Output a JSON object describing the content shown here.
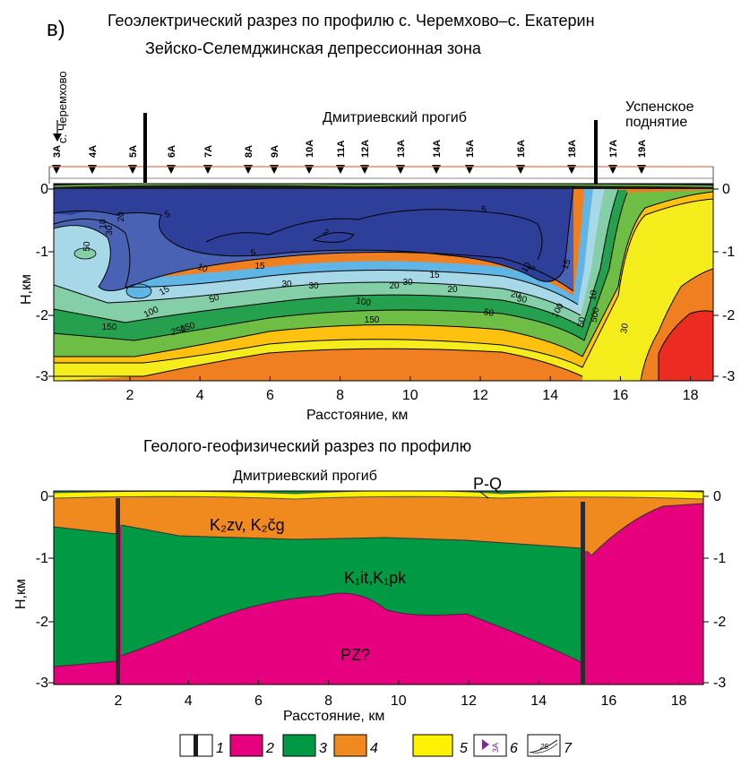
{
  "panel_letter": "в)",
  "title_line1": "Геоэлектрический разрез по профилю с. Черемхово–с. Екатерин",
  "title_line2": "Зейско-Селемджинская депрессионная зона",
  "village_label": "с. Черемхово",
  "trough_label": "Дмитриевский прогиб",
  "uplift_label_1": "Успенское",
  "uplift_label_2": "поднятие",
  "stations": [
    "3А",
    "4А",
    "5А",
    "6А",
    "7А",
    "8А",
    "9А",
    "10А",
    "11А",
    "12А",
    "13А",
    "14А",
    "15А",
    "16А",
    "18А",
    "17А",
    "19А"
  ],
  "top_panel": {
    "ylabel": "Н,км",
    "xlabel": "Расстояние, км",
    "x_ticks": [
      "2",
      "4",
      "6",
      "8",
      "10",
      "12",
      "14",
      "16",
      "18"
    ],
    "y_ticks": [
      "0",
      "-1",
      "-2",
      "-3"
    ],
    "contour_labels": [
      "5",
      "5",
      "5",
      "2",
      "5",
      "10",
      "10",
      "10",
      "15",
      "15",
      "15",
      "15",
      "20",
      "20",
      "20",
      "20",
      "30",
      "30",
      "30",
      "30",
      "30",
      "50",
      "50",
      "50",
      "100",
      "100",
      "100",
      "150",
      "150",
      "150",
      "250",
      "500",
      "30",
      "50",
      "10"
    ],
    "resistivity_colors": [
      "#2e3f9a",
      "#4a62b4",
      "#5fb6e6",
      "#a6d8e8",
      "#84cfa8",
      "#24a04e",
      "#6ebd45",
      "#f5ec1c",
      "#fec10f",
      "#f07f22",
      "#ec2c22"
    ]
  },
  "bottom_panel": {
    "title": "Геолого-геофизический разрез по профилю",
    "trough_label": "Дмитриевский прогиб",
    "ylabel": "Н,км",
    "xlabel": "Расстояние, км",
    "x_ticks": [
      "2",
      "4",
      "6",
      "8",
      "10",
      "12",
      "14",
      "16",
      "18"
    ],
    "y_ticks": [
      "0",
      "-1",
      "-2",
      "-3"
    ],
    "label_pq": "P-Q",
    "label_k2": "K₂zv, K₂čg",
    "label_k1": "K₁it,K₁pk",
    "label_pz": "PZ?"
  },
  "legend": {
    "numbers": [
      "1",
      "2",
      "3",
      "4",
      "5",
      "6",
      "7"
    ],
    "station_sample": "3А",
    "contour_sample": "25",
    "colors": {
      "pz": "#e6007e",
      "k1": "#009a44",
      "k2": "#f18a1e",
      "pq": "#fff200"
    }
  }
}
